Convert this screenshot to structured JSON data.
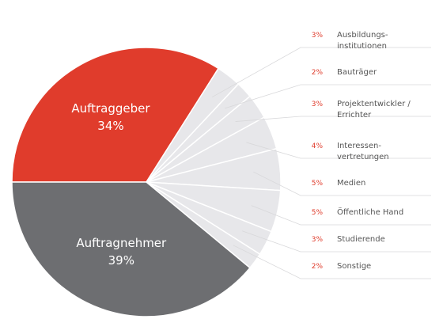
{
  "chart_data": {
    "type": "pie",
    "categories": [
      "Auftraggeber",
      "Ausbildungs-\ninstitutionen",
      "Bauträger",
      "Projektentwickler /\nErrichter",
      "Interessen-\nvertretungen",
      "Medien",
      "Öffentliche Hand",
      "Studierende",
      "Sonstige",
      "Auftragnehmer"
    ],
    "values": [
      34,
      3,
      2,
      3,
      4,
      5,
      5,
      3,
      2,
      39
    ],
    "value_labels": [
      "34%",
      "3%",
      "2%",
      "3%",
      "4%",
      "5%",
      "5%",
      "3%",
      "2%",
      "39%"
    ],
    "colors": [
      "#e03c2c",
      "#e7e7ea",
      "#e7e7ea",
      "#e7e7ea",
      "#e7e7ea",
      "#e7e7ea",
      "#e7e7ea",
      "#e7e7ea",
      "#e7e7ea",
      "#6d6e71"
    ]
  }
}
